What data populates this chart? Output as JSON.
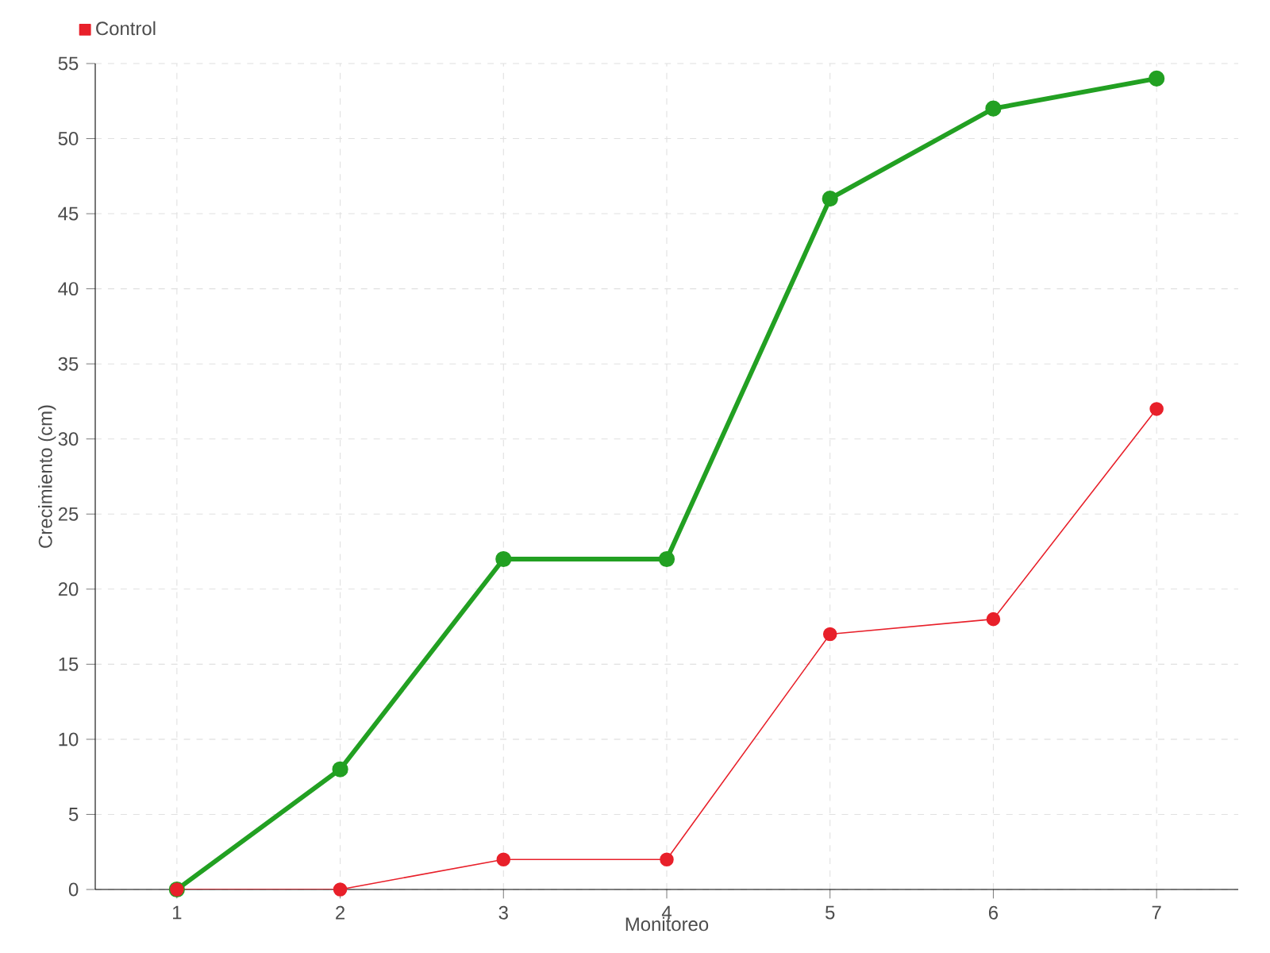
{
  "chart_data": {
    "type": "line",
    "xlabel": "Monitoreo",
    "ylabel": "Crecimiento (cm)",
    "x": [
      1,
      2,
      3,
      4,
      5,
      6,
      7
    ],
    "series": [
      {
        "color": "#22a022",
        "values": [
          0,
          8,
          22,
          22,
          46,
          52,
          54
        ]
      },
      {
        "name": "Control",
        "color": "#e8202a",
        "values": [
          0,
          0,
          2,
          2,
          17,
          18,
          32
        ]
      }
    ],
    "xlim": [
      0.5,
      7.5
    ],
    "ylim": [
      0,
      55
    ],
    "xticks": [
      1,
      2,
      3,
      4,
      5,
      6,
      7
    ],
    "yticks": [
      0,
      5,
      10,
      15,
      20,
      25,
      30,
      35,
      40,
      45,
      50,
      55
    ],
    "grid": true,
    "legend": "top left",
    "marker": "circle",
    "line_style": "solid"
  }
}
